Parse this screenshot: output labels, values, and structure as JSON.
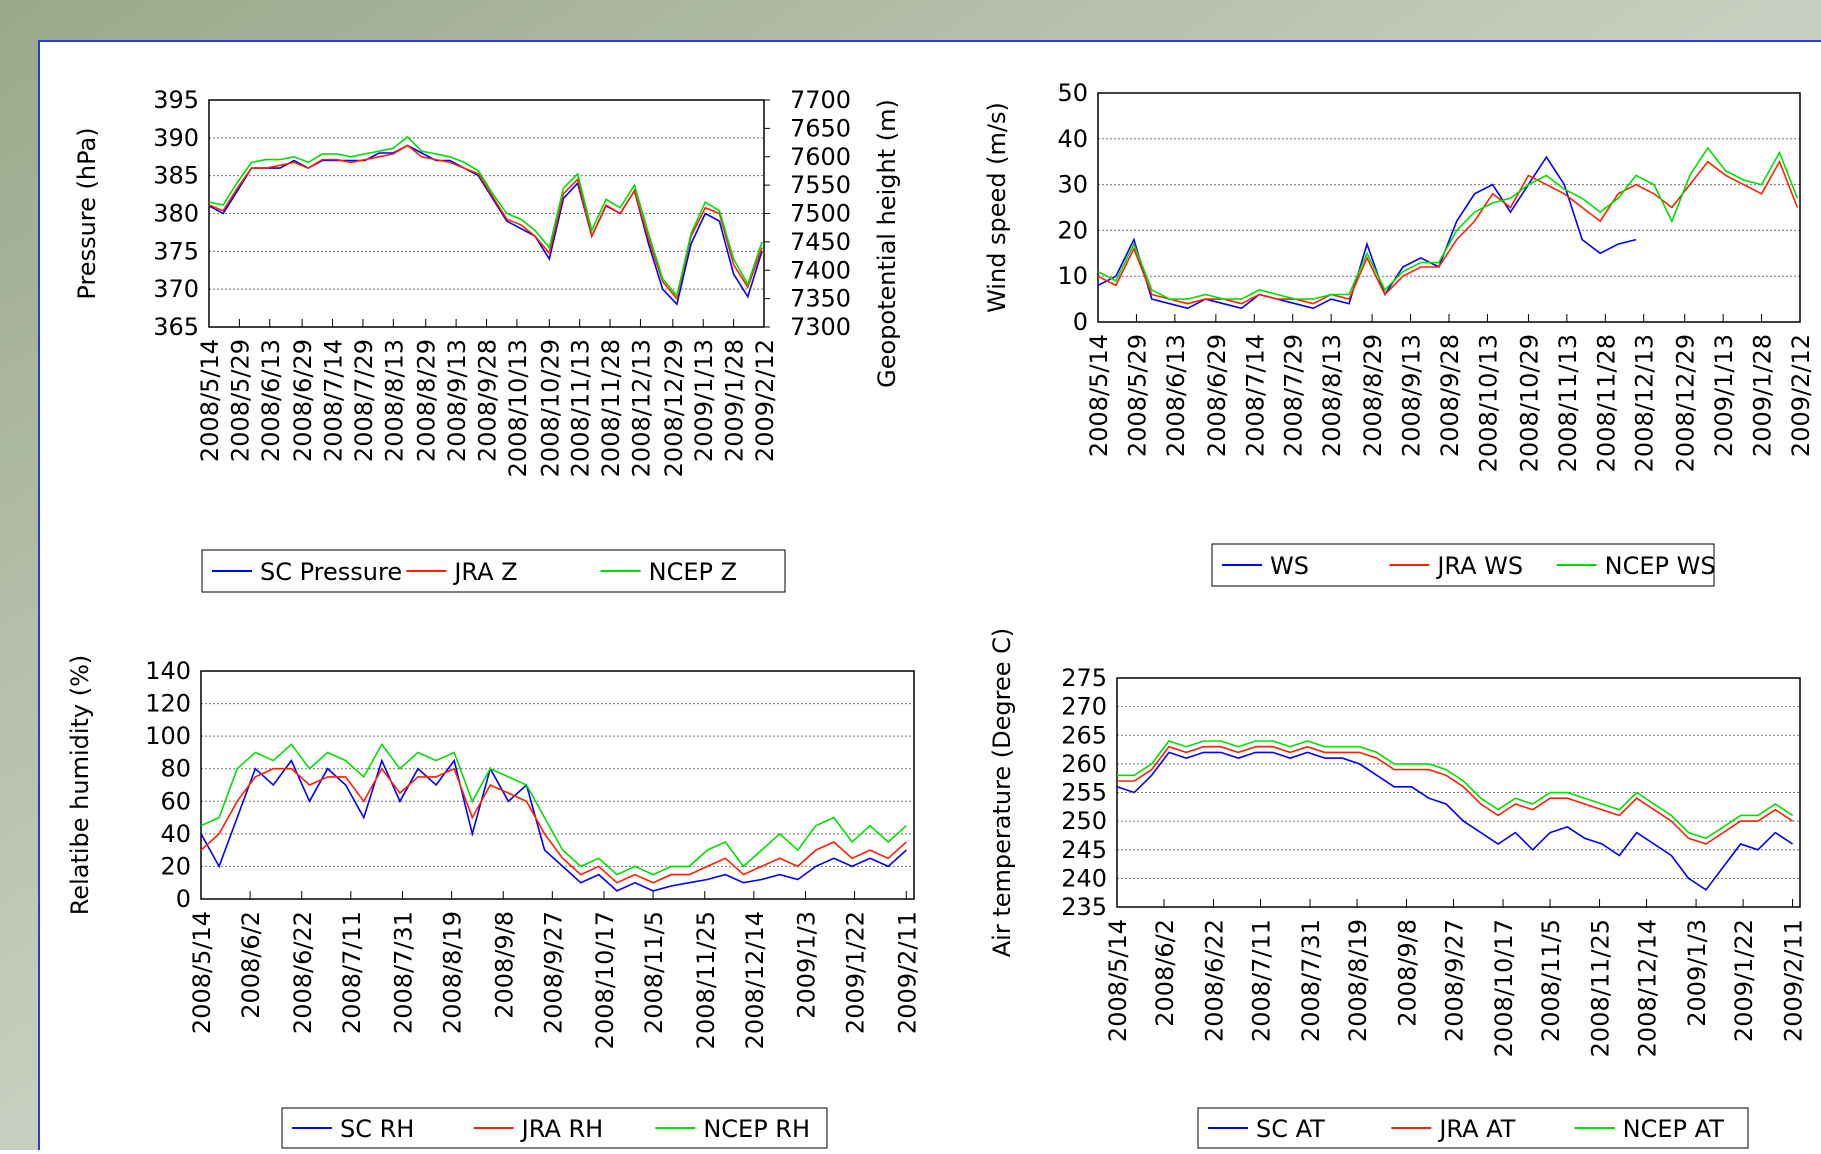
{
  "chart_data": [
    {
      "type": "line",
      "y_label": "Pressure (hPa)",
      "y2_label": "Geopotential height (m)",
      "grid": true,
      "legend": "bottom",
      "x": [
        "2008/5/14",
        "2008/5/21",
        "2008/5/28",
        "2008/6/4",
        "2008/6/11",
        "2008/6/18",
        "2008/6/25",
        "2008/7/2",
        "2008/7/9",
        "2008/7/16",
        "2008/7/23",
        "2008/7/30",
        "2008/8/6",
        "2008/8/13",
        "2008/8/20",
        "2008/8/27",
        "2008/9/3",
        "2008/9/10",
        "2008/9/17",
        "2008/9/24",
        "2008/10/1",
        "2008/10/8",
        "2008/10/15",
        "2008/10/22",
        "2008/10/29",
        "2008/11/5",
        "2008/11/12",
        "2008/11/19",
        "2008/11/26",
        "2008/12/3",
        "2008/12/10",
        "2008/12/17",
        "2008/12/24",
        "2008/12/31",
        "2009/1/7",
        "2009/1/14",
        "2009/1/21",
        "2009/1/28",
        "2009/2/4",
        "2009/2/11"
      ],
      "xlim": [
        "2008/5/14",
        "2009/2/12"
      ],
      "xticks": [
        "2008/5/14",
        "2008/5/29",
        "2008/6/13",
        "2008/6/29",
        "2008/7/14",
        "2008/7/29",
        "2008/8/13",
        "2008/8/29",
        "2008/9/13",
        "2008/9/28",
        "2008/10/13",
        "2008/10/29",
        "2008/11/13",
        "2008/11/28",
        "2008/12/13",
        "2008/12/29",
        "2009/1/13",
        "2009/1/28",
        "2009/2/12"
      ],
      "ylim": [
        365,
        395
      ],
      "yticks": [
        365,
        370,
        375,
        380,
        385,
        390,
        395
      ],
      "y2lim": [
        7300,
        7700
      ],
      "y2ticks": [
        7300,
        7350,
        7400,
        7450,
        7500,
        7550,
        7600,
        7650,
        7700
      ],
      "series": [
        {
          "name": "SC Pressure",
          "color": "#0000ff",
          "values": [
            381,
            380,
            383,
            386,
            386,
            386,
            387,
            386,
            387,
            387,
            387,
            387,
            388,
            388,
            389,
            388,
            387,
            387,
            386,
            385,
            382,
            379,
            378,
            377,
            374,
            382,
            384,
            377,
            381,
            380,
            383,
            376,
            370,
            368,
            376,
            380,
            379,
            372,
            369,
            375
          ]
        },
        {
          "name": "JRA Z",
          "color": "#ff2000",
          "axis": "y2",
          "values": [
            7515,
            7505,
            7545,
            7580,
            7580,
            7585,
            7590,
            7580,
            7595,
            7595,
            7590,
            7595,
            7600,
            7605,
            7620,
            7600,
            7595,
            7590,
            7580,
            7570,
            7530,
            7490,
            7480,
            7460,
            7430,
            7535,
            7560,
            7460,
            7515,
            7500,
            7540,
            7455,
            7380,
            7350,
            7460,
            7510,
            7500,
            7410,
            7370,
            7440
          ]
        },
        {
          "name": "NCEP Z",
          "color": "#00e000",
          "axis": "y2",
          "values": [
            7520,
            7515,
            7555,
            7590,
            7595,
            7595,
            7600,
            7590,
            7605,
            7605,
            7600,
            7605,
            7610,
            7615,
            7635,
            7610,
            7605,
            7600,
            7590,
            7575,
            7535,
            7500,
            7490,
            7470,
            7440,
            7545,
            7570,
            7470,
            7525,
            7510,
            7550,
            7465,
            7385,
            7355,
            7465,
            7520,
            7505,
            7420,
            7375,
            7450
          ]
        }
      ]
    },
    {
      "type": "line",
      "y_label": "Wind speed (m/s)",
      "grid": true,
      "legend": "bottom",
      "x": [
        "2008/5/14",
        "2008/5/21",
        "2008/5/28",
        "2008/6/4",
        "2008/6/11",
        "2008/6/18",
        "2008/6/25",
        "2008/7/2",
        "2008/7/9",
        "2008/7/16",
        "2008/7/23",
        "2008/7/30",
        "2008/8/6",
        "2008/8/13",
        "2008/8/20",
        "2008/8/27",
        "2008/9/3",
        "2008/9/10",
        "2008/9/17",
        "2008/9/24",
        "2008/10/1",
        "2008/10/8",
        "2008/10/15",
        "2008/10/22",
        "2008/10/29",
        "2008/11/5",
        "2008/11/12",
        "2008/11/19",
        "2008/11/26",
        "2008/12/3",
        "2008/12/10",
        "2008/12/17",
        "2008/12/24",
        "2008/12/31",
        "2009/1/7",
        "2009/1/14",
        "2009/1/21",
        "2009/1/28",
        "2009/2/4",
        "2009/2/11"
      ],
      "xlim": [
        "2008/5/14",
        "2009/2/12"
      ],
      "xticks": [
        "2008/5/14",
        "2008/5/29",
        "2008/6/13",
        "2008/6/29",
        "2008/7/14",
        "2008/7/29",
        "2008/8/13",
        "2008/8/29",
        "2008/9/13",
        "2008/9/28",
        "2008/10/13",
        "2008/10/29",
        "2008/11/13",
        "2008/11/28",
        "2008/12/13",
        "2008/12/29",
        "2009/1/13",
        "2009/1/28",
        "2009/2/12"
      ],
      "ylim": [
        0,
        50
      ],
      "yticks": [
        0,
        10,
        20,
        30,
        40,
        50
      ],
      "series": [
        {
          "name": "WS",
          "color": "#0000ff",
          "values": [
            8,
            10,
            18,
            5,
            4,
            3,
            5,
            4,
            3,
            6,
            5,
            4,
            3,
            5,
            4,
            17,
            6,
            12,
            14,
            12,
            22,
            28,
            30,
            24,
            30,
            36,
            30,
            18,
            15,
            17,
            18,
            null,
            null,
            null,
            null,
            null,
            null,
            null,
            null,
            null
          ]
        },
        {
          "name": "JRA WS",
          "color": "#ff2000",
          "values": [
            10,
            8,
            16,
            6,
            5,
            4,
            5,
            5,
            4,
            6,
            5,
            5,
            4,
            6,
            5,
            14,
            6,
            10,
            12,
            12,
            18,
            22,
            28,
            25,
            32,
            30,
            28,
            25,
            22,
            28,
            30,
            28,
            25,
            30,
            35,
            32,
            30,
            28,
            35,
            25
          ]
        },
        {
          "name": "NCEP WS",
          "color": "#00e000",
          "values": [
            11,
            9,
            17,
            7,
            5,
            5,
            6,
            5,
            5,
            7,
            6,
            5,
            5,
            6,
            6,
            15,
            7,
            11,
            13,
            13,
            20,
            24,
            26,
            27,
            30,
            32,
            29,
            27,
            24,
            27,
            32,
            30,
            22,
            32,
            38,
            33,
            31,
            30,
            37,
            27
          ]
        }
      ]
    },
    {
      "type": "line",
      "y_label": "Relatibe humidity (%)",
      "grid": true,
      "legend": "bottom",
      "x": [
        "2008/5/14",
        "2008/5/21",
        "2008/5/28",
        "2008/6/4",
        "2008/6/11",
        "2008/6/18",
        "2008/6/25",
        "2008/7/2",
        "2008/7/9",
        "2008/7/16",
        "2008/7/23",
        "2008/7/30",
        "2008/8/6",
        "2008/8/13",
        "2008/8/20",
        "2008/8/27",
        "2008/9/3",
        "2008/9/10",
        "2008/9/17",
        "2008/9/24",
        "2008/10/1",
        "2008/10/8",
        "2008/10/15",
        "2008/10/22",
        "2008/10/29",
        "2008/11/5",
        "2008/11/12",
        "2008/11/19",
        "2008/11/26",
        "2008/12/3",
        "2008/12/10",
        "2008/12/17",
        "2008/12/24",
        "2008/12/31",
        "2009/1/7",
        "2009/1/14",
        "2009/1/21",
        "2009/1/28",
        "2009/2/4",
        "2009/2/11"
      ],
      "xlim": [
        "2008/5/14",
        "2009/2/14"
      ],
      "xticks": [
        "2008/5/14",
        "2008/6/2",
        "2008/6/22",
        "2008/7/11",
        "2008/7/31",
        "2008/8/19",
        "2008/9/8",
        "2008/9/27",
        "2008/10/17",
        "2008/11/5",
        "2008/11/25",
        "2008/12/14",
        "2009/1/3",
        "2009/1/22",
        "2009/2/11"
      ],
      "ylim": [
        0,
        140
      ],
      "yticks": [
        0,
        20,
        40,
        60,
        80,
        100,
        120,
        140
      ],
      "series": [
        {
          "name": "SC RH",
          "color": "#0000ff",
          "values": [
            40,
            20,
            50,
            80,
            70,
            85,
            60,
            80,
            70,
            50,
            85,
            60,
            80,
            70,
            85,
            40,
            80,
            60,
            70,
            30,
            20,
            10,
            15,
            5,
            10,
            5,
            8,
            10,
            12,
            15,
            10,
            12,
            15,
            12,
            20,
            25,
            20,
            25,
            20,
            30
          ]
        },
        {
          "name": "JRA RH",
          "color": "#ff2000",
          "values": [
            30,
            40,
            60,
            75,
            80,
            80,
            70,
            75,
            75,
            60,
            80,
            65,
            75,
            75,
            80,
            50,
            70,
            65,
            60,
            40,
            25,
            15,
            20,
            10,
            15,
            10,
            15,
            15,
            20,
            25,
            15,
            20,
            25,
            20,
            30,
            35,
            25,
            30,
            25,
            35
          ]
        },
        {
          "name": "NCEP RH",
          "color": "#00e000",
          "values": [
            45,
            50,
            80,
            90,
            85,
            95,
            80,
            90,
            85,
            75,
            95,
            80,
            90,
            85,
            90,
            60,
            80,
            75,
            70,
            50,
            30,
            20,
            25,
            15,
            20,
            15,
            20,
            20,
            30,
            35,
            20,
            30,
            40,
            30,
            45,
            50,
            35,
            45,
            35,
            45
          ]
        }
      ]
    },
    {
      "type": "line",
      "y_label": "Air temperature (Degree C)",
      "grid": true,
      "legend": "bottom",
      "x": [
        "2008/5/14",
        "2008/5/21",
        "2008/5/28",
        "2008/6/4",
        "2008/6/11",
        "2008/6/18",
        "2008/6/25",
        "2008/7/2",
        "2008/7/9",
        "2008/7/16",
        "2008/7/23",
        "2008/7/30",
        "2008/8/6",
        "2008/8/13",
        "2008/8/20",
        "2008/8/27",
        "2008/9/3",
        "2008/9/10",
        "2008/9/17",
        "2008/9/24",
        "2008/10/1",
        "2008/10/8",
        "2008/10/15",
        "2008/10/22",
        "2008/10/29",
        "2008/11/5",
        "2008/11/12",
        "2008/11/19",
        "2008/11/26",
        "2008/12/3",
        "2008/12/10",
        "2008/12/17",
        "2008/12/24",
        "2008/12/31",
        "2009/1/7",
        "2009/1/14",
        "2009/1/21",
        "2009/1/28",
        "2009/2/4",
        "2009/2/11"
      ],
      "xlim": [
        "2008/5/14",
        "2009/2/14"
      ],
      "xticks": [
        "2008/5/14",
        "2008/6/2",
        "2008/6/22",
        "2008/7/11",
        "2008/7/31",
        "2008/8/19",
        "2008/9/8",
        "2008/9/27",
        "2008/10/17",
        "2008/11/5",
        "2008/11/25",
        "2008/12/14",
        "2009/1/3",
        "2009/1/22",
        "2009/2/11"
      ],
      "ylim": [
        235,
        275
      ],
      "yticks": [
        235,
        240,
        245,
        250,
        255,
        260,
        265,
        270,
        275
      ],
      "series": [
        {
          "name": "SC AT",
          "color": "#0000ff",
          "values": [
            256,
            255,
            258,
            262,
            261,
            262,
            262,
            261,
            262,
            262,
            261,
            262,
            261,
            261,
            260,
            258,
            256,
            256,
            254,
            253,
            250,
            248,
            246,
            248,
            245,
            248,
            249,
            247,
            246,
            244,
            248,
            246,
            244,
            240,
            238,
            242,
            246,
            245,
            248,
            246
          ]
        },
        {
          "name": "JRA AT",
          "color": "#ff2000",
          "values": [
            257,
            257,
            259,
            263,
            262,
            263,
            263,
            262,
            263,
            263,
            262,
            263,
            262,
            262,
            262,
            261,
            259,
            259,
            259,
            258,
            256,
            253,
            251,
            253,
            252,
            254,
            254,
            253,
            252,
            251,
            254,
            252,
            250,
            247,
            246,
            248,
            250,
            250,
            252,
            250
          ]
        },
        {
          "name": "NCEP AT",
          "color": "#00e000",
          "values": [
            258,
            258,
            260,
            264,
            263,
            264,
            264,
            263,
            264,
            264,
            263,
            264,
            263,
            263,
            263,
            262,
            260,
            260,
            260,
            259,
            257,
            254,
            252,
            254,
            253,
            255,
            255,
            254,
            253,
            252,
            255,
            253,
            251,
            248,
            247,
            249,
            251,
            251,
            253,
            251
          ]
        }
      ]
    }
  ]
}
